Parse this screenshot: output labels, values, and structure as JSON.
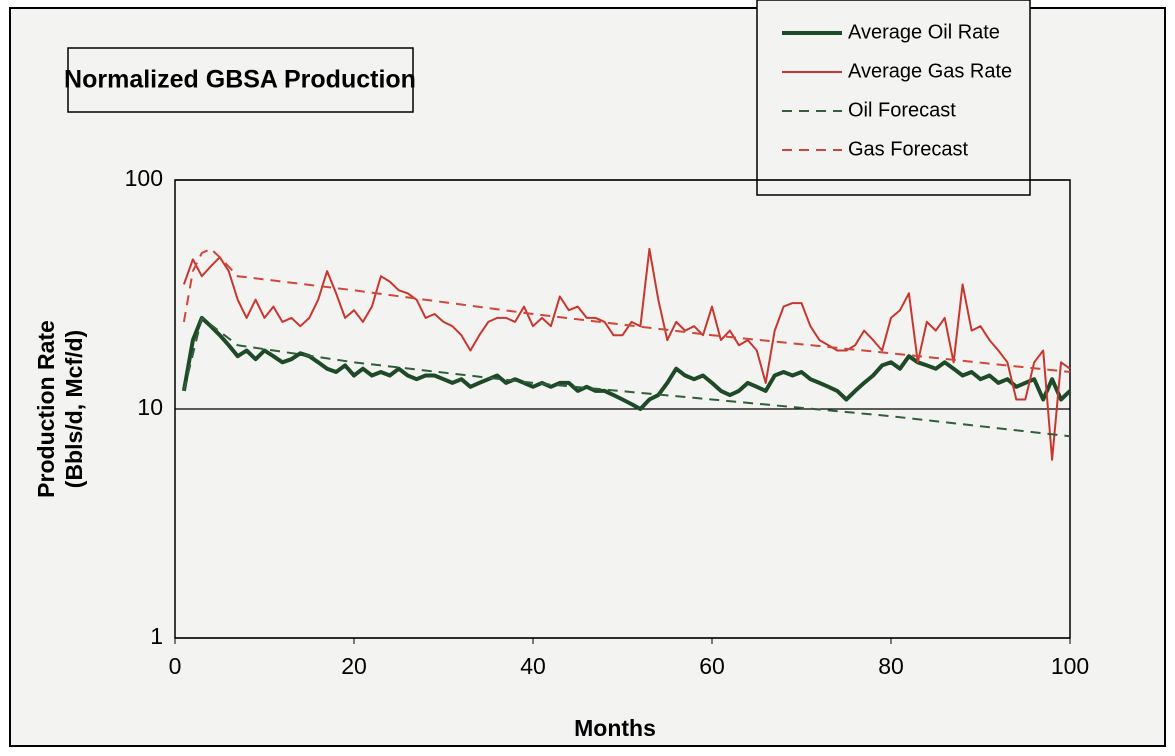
{
  "chart_data": {
    "type": "line",
    "title": "Normalized GBSA Production",
    "xlabel": "Months",
    "ylabel": [
      "Production Rate",
      "(Bbls/d, Mcf/d)"
    ],
    "yscale": "log",
    "xlim": [
      0,
      100
    ],
    "ylim": [
      1,
      100
    ],
    "xticks": [
      0,
      20,
      40,
      60,
      80,
      100
    ],
    "yticks": [
      1,
      10,
      100
    ],
    "grid": true,
    "x": [
      1,
      2,
      3,
      4,
      5,
      6,
      7,
      8,
      9,
      10,
      11,
      12,
      13,
      14,
      15,
      16,
      17,
      18,
      19,
      20,
      21,
      22,
      23,
      24,
      25,
      26,
      27,
      28,
      29,
      30,
      31,
      32,
      33,
      34,
      35,
      36,
      37,
      38,
      39,
      40,
      41,
      42,
      43,
      44,
      45,
      46,
      47,
      48,
      49,
      50,
      51,
      52,
      53,
      54,
      55,
      56,
      57,
      58,
      59,
      60,
      61,
      62,
      63,
      64,
      65,
      66,
      67,
      68,
      69,
      70,
      71,
      72,
      73,
      74,
      75,
      76,
      77,
      78,
      79,
      80,
      81,
      82,
      83,
      84,
      85,
      86,
      87,
      88,
      89,
      90,
      91,
      92,
      93,
      94,
      95,
      96,
      97,
      98,
      99,
      100
    ],
    "series": [
      {
        "name": "Average Oil Rate",
        "color": "#1e4a28",
        "width": 4,
        "dash": false,
        "values": [
          12,
          20,
          25,
          23,
          21,
          19,
          17,
          18,
          16.5,
          18,
          17,
          16,
          16.5,
          17.5,
          17,
          16,
          15,
          14.5,
          15.5,
          14,
          15,
          14,
          14.5,
          14,
          15,
          14,
          13.5,
          14,
          14,
          13.5,
          13,
          13.5,
          12.5,
          13,
          13.5,
          14,
          13,
          13.5,
          13,
          12.5,
          13,
          12.5,
          13,
          13,
          12,
          12.5,
          12,
          12,
          11.5,
          11,
          10.5,
          10,
          11,
          11.5,
          13,
          15,
          14,
          13.5,
          14,
          13,
          12,
          11.5,
          12,
          13,
          12.5,
          12,
          14,
          14.5,
          14,
          14.5,
          13.5,
          13,
          12.5,
          12,
          11,
          12,
          13,
          14,
          15.5,
          16,
          15,
          17,
          16,
          15.5,
          15,
          16,
          15,
          14,
          14.5,
          13.5,
          14,
          13,
          13.5,
          12.5,
          13,
          13.5,
          11,
          13.5,
          11,
          12
        ]
      },
      {
        "name": "Average Gas Rate",
        "color": "#c8372d",
        "width": 2,
        "dash": false,
        "values": [
          35,
          45,
          38,
          42,
          46,
          40,
          30,
          25,
          30,
          25,
          28,
          24,
          25,
          23,
          25,
          30,
          40,
          32,
          25,
          27,
          24,
          28,
          38,
          36,
          33,
          32,
          30,
          25,
          26,
          24,
          23,
          21,
          18,
          21,
          24,
          25,
          25,
          24,
          28,
          23,
          25,
          23,
          31,
          27,
          28,
          25,
          25,
          24,
          21,
          21,
          24,
          23,
          50,
          30,
          20,
          24,
          22,
          23,
          21,
          28,
          20,
          22,
          19,
          20,
          18,
          13,
          22,
          28,
          29,
          29,
          23,
          20,
          19,
          18,
          18,
          19,
          22,
          20,
          18,
          25,
          27,
          32,
          16,
          24,
          22,
          25,
          16,
          35,
          22,
          23,
          20,
          18,
          16,
          11,
          11,
          16,
          18,
          6,
          16,
          15
        ]
      },
      {
        "name": "Oil Forecast",
        "color": "#2e5e3a",
        "width": 2,
        "dash": true,
        "x": [
          1,
          3,
          7,
          20,
          40,
          60,
          80,
          100
        ],
        "values": [
          12,
          25,
          19,
          16,
          13,
          11,
          9.3,
          7.6
        ]
      },
      {
        "name": "Gas Forecast",
        "color": "#d0463a",
        "width": 2,
        "dash": true,
        "x": [
          1,
          2,
          3,
          4,
          5,
          7,
          20,
          40,
          60,
          80,
          100
        ],
        "values": [
          24,
          40,
          48,
          50,
          46,
          38,
          33,
          26,
          21,
          17.5,
          14.5
        ]
      }
    ]
  }
}
